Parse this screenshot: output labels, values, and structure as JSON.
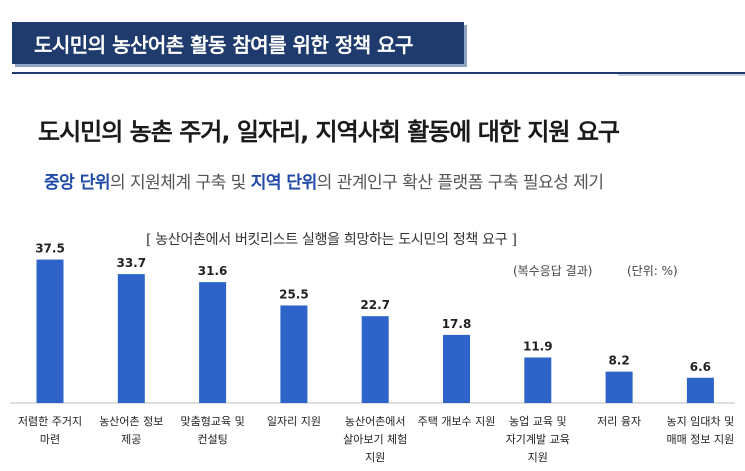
{
  "banner": {
    "title": "도시민의 농산어촌 활동 참여를 위한 정책 요구"
  },
  "headline": "도시민의 농촌 주거, 일자리, 지역사회 활동에 대한 지원 요구",
  "subline": {
    "hl1": "중앙 단위",
    "t1": "의 지원체계 구축 및 ",
    "hl2": "지역 단위",
    "t2": "의 관계인구 확산 플랫폼 구축 필요성 제기"
  },
  "colors": {
    "bar": "#2e64c9",
    "banner": "#1f3a6d",
    "highlight": "#1f4aa8"
  },
  "chart_data": {
    "type": "bar",
    "title": "[ 농산어촌에서 버킷리스트 실행을 희망하는 도시민의 정책 요구 ]",
    "note_multi": "(복수응답 결과)",
    "note_unit": "(단위: %)",
    "categories": [
      [
        "저렴한 주거지",
        "마련"
      ],
      [
        "농산어촌 정보",
        "제공"
      ],
      [
        "맞춤형교육 및",
        "컨설팅"
      ],
      [
        "일자리 지원"
      ],
      [
        "농산어촌에서",
        "살아보기 체험",
        "지원"
      ],
      [
        "주택 개보수 지원"
      ],
      [
        "농업 교육 및",
        "자기계발 교육",
        "지원"
      ],
      [
        "저리 융자"
      ],
      [
        "농지 임대차 및",
        "매매 정보 지원"
      ]
    ],
    "values": [
      37.5,
      33.7,
      31.6,
      25.5,
      22.7,
      17.8,
      11.9,
      8.2,
      6.6
    ],
    "value_labels": [
      "37.5",
      "33.7",
      "31.6",
      "25.5",
      "22.7",
      "17.8",
      "11.9",
      "8.2",
      "6.6"
    ],
    "ylim": [
      0,
      40
    ],
    "grid": false
  }
}
